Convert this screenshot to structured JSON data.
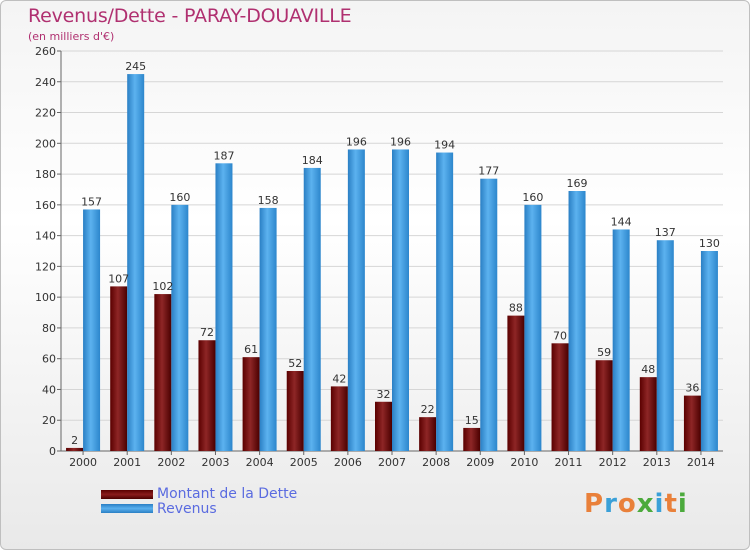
{
  "title": "Revenus/Dette - PARAY-DOUAVILLE",
  "subtitle": "(en milliers d'€)",
  "legend": {
    "debt_label": "Montant de la Dette",
    "revenue_label": "Revenus"
  },
  "logo": {
    "text": "Proxiti",
    "colors": [
      "#e9803a",
      "#3aa0d8",
      "#e9803a",
      "#4caa3c",
      "#3aa0d8",
      "#e9803a",
      "#4caa3c"
    ]
  },
  "colors": {
    "debt": "#7a1010",
    "revenue": "#4aa3e8",
    "axis_text": "#333333",
    "title": "#b03070",
    "legend_text": "#5a6be0"
  },
  "chart_data": {
    "type": "bar",
    "categories": [
      "2000",
      "2001",
      "2002",
      "2003",
      "2004",
      "2005",
      "2006",
      "2007",
      "2008",
      "2009",
      "2010",
      "2011",
      "2012",
      "2013",
      "2014"
    ],
    "series": [
      {
        "name": "Montant de la Dette",
        "values": [
          2,
          107,
          102,
          72,
          61,
          52,
          42,
          32,
          22,
          15,
          88,
          70,
          59,
          48,
          36
        ]
      },
      {
        "name": "Revenus",
        "values": [
          157,
          245,
          160,
          187,
          158,
          184,
          196,
          196,
          194,
          177,
          160,
          169,
          144,
          137,
          130
        ]
      }
    ],
    "yticks": [
      0,
      20,
      40,
      60,
      80,
      100,
      120,
      140,
      160,
      180,
      200,
      220,
      240,
      260
    ],
    "ylim": [
      0,
      260
    ],
    "grid": true,
    "legend_position": "bottom-left"
  }
}
